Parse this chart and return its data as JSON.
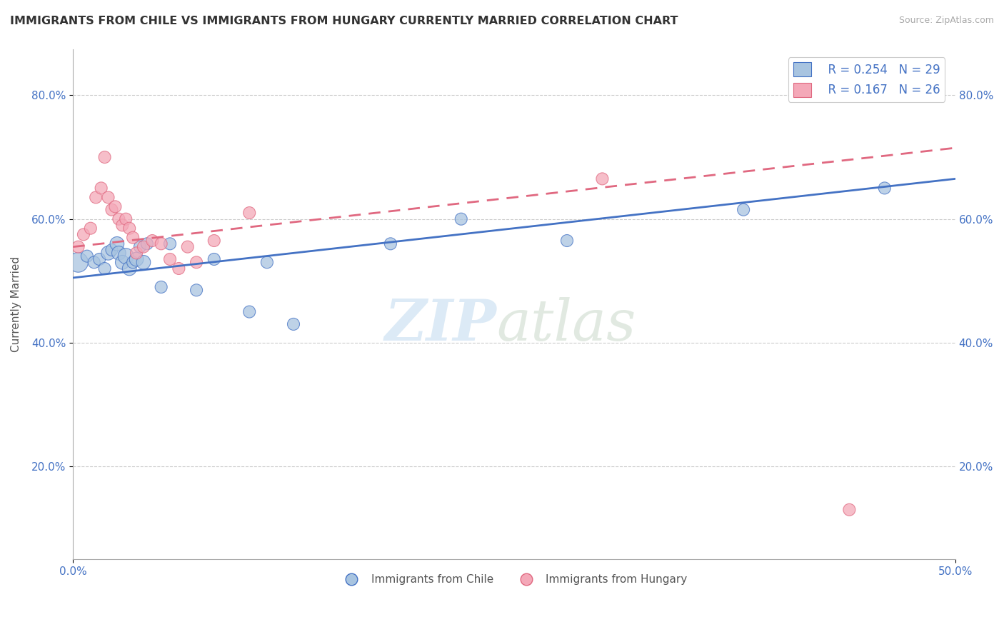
{
  "title": "IMMIGRANTS FROM CHILE VS IMMIGRANTS FROM HUNGARY CURRENTLY MARRIED CORRELATION CHART",
  "source_text": "Source: ZipAtlas.com",
  "ylabel": "Currently Married",
  "xlim": [
    0.0,
    0.5
  ],
  "ylim": [
    0.05,
    0.875
  ],
  "xtick_labels": [
    "0.0%",
    "50.0%"
  ],
  "ytick_labels": [
    "20.0%",
    "40.0%",
    "60.0%",
    "80.0%"
  ],
  "ytick_vals": [
    0.2,
    0.4,
    0.6,
    0.8
  ],
  "xtick_vals": [
    0.0,
    0.5
  ],
  "legend_r_chile": "R = 0.254",
  "legend_n_chile": "N = 29",
  "legend_r_hungary": "R = 0.167",
  "legend_n_hungary": "N = 26",
  "color_chile": "#a8c4e0",
  "color_hungary": "#f4a8b8",
  "line_color_chile": "#4472c4",
  "line_color_hungary": "#e06880",
  "chile_x": [
    0.003,
    0.008,
    0.012,
    0.015,
    0.018,
    0.02,
    0.022,
    0.025,
    0.026,
    0.028,
    0.03,
    0.032,
    0.034,
    0.036,
    0.038,
    0.04,
    0.042,
    0.05,
    0.055,
    0.07,
    0.08,
    0.1,
    0.11,
    0.125,
    0.18,
    0.22,
    0.28,
    0.38,
    0.46
  ],
  "chile_y": [
    0.53,
    0.54,
    0.53,
    0.535,
    0.52,
    0.545,
    0.55,
    0.56,
    0.545,
    0.53,
    0.54,
    0.52,
    0.53,
    0.535,
    0.555,
    0.53,
    0.56,
    0.49,
    0.56,
    0.485,
    0.535,
    0.45,
    0.53,
    0.43,
    0.56,
    0.6,
    0.565,
    0.615,
    0.65
  ],
  "chile_size": [
    400,
    150,
    150,
    150,
    150,
    200,
    150,
    200,
    200,
    200,
    250,
    200,
    150,
    200,
    150,
    200,
    150,
    150,
    150,
    150,
    150,
    150,
    150,
    150,
    150,
    150,
    150,
    150,
    150
  ],
  "hungary_x": [
    0.003,
    0.006,
    0.01,
    0.013,
    0.016,
    0.018,
    0.02,
    0.022,
    0.024,
    0.026,
    0.028,
    0.03,
    0.032,
    0.034,
    0.036,
    0.04,
    0.045,
    0.05,
    0.055,
    0.06,
    0.065,
    0.07,
    0.08,
    0.1,
    0.3,
    0.44
  ],
  "hungary_y": [
    0.555,
    0.575,
    0.585,
    0.635,
    0.65,
    0.7,
    0.635,
    0.615,
    0.62,
    0.6,
    0.59,
    0.6,
    0.585,
    0.57,
    0.545,
    0.555,
    0.565,
    0.56,
    0.535,
    0.52,
    0.555,
    0.53,
    0.565,
    0.61,
    0.665,
    0.13
  ],
  "hungary_size": [
    150,
    150,
    150,
    150,
    150,
    150,
    150,
    150,
    150,
    150,
    150,
    150,
    150,
    150,
    150,
    150,
    150,
    150,
    150,
    150,
    150,
    150,
    150,
    150,
    150,
    150
  ],
  "chile_line_x": [
    0.0,
    0.5
  ],
  "chile_line_y": [
    0.505,
    0.665
  ],
  "hungary_line_x": [
    0.0,
    0.5
  ],
  "hungary_line_y": [
    0.555,
    0.715
  ]
}
